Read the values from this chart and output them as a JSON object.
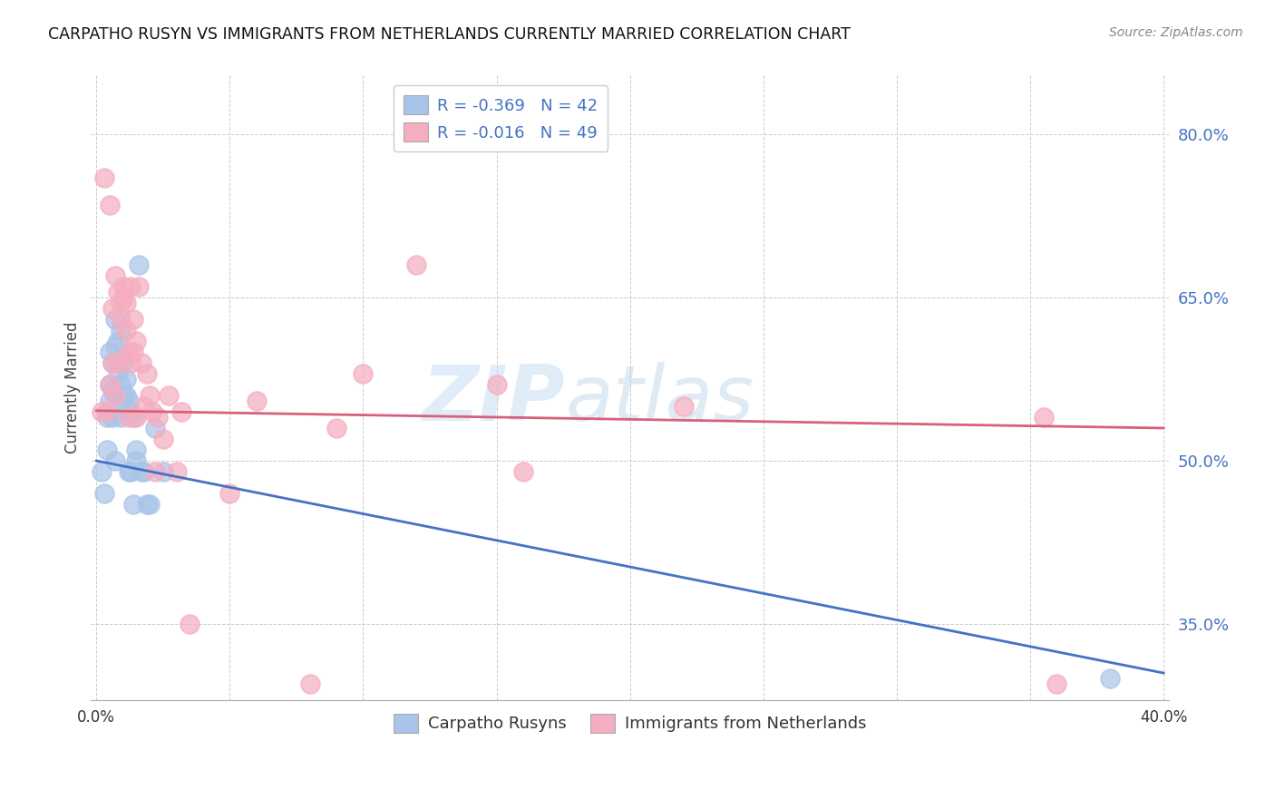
{
  "title": "CARPATHO RUSYN VS IMMIGRANTS FROM NETHERLANDS CURRENTLY MARRIED CORRELATION CHART",
  "source": "Source: ZipAtlas.com",
  "ylabel": "Currently Married",
  "y_ticks": [
    0.35,
    0.5,
    0.65,
    0.8
  ],
  "y_tick_labels": [
    "35.0%",
    "50.0%",
    "65.0%",
    "80.0%"
  ],
  "watermark_zip": "ZIP",
  "watermark_atlas": "atlas",
  "legend_blue_label": "R = -0.369   N = 42",
  "legend_pink_label": "R = -0.016   N = 49",
  "legend_bottom_blue": "Carpatho Rusyns",
  "legend_bottom_pink": "Immigrants from Netherlands",
  "blue_color": "#a8c4e8",
  "pink_color": "#f5adc0",
  "blue_line_color": "#4472c4",
  "pink_line_color": "#d9607a",
  "xlim": [
    -0.002,
    0.402
  ],
  "ylim": [
    0.28,
    0.855
  ],
  "blue_scatter_x": [
    0.002,
    0.003,
    0.004,
    0.004,
    0.005,
    0.005,
    0.005,
    0.006,
    0.006,
    0.006,
    0.007,
    0.007,
    0.007,
    0.007,
    0.008,
    0.008,
    0.008,
    0.008,
    0.009,
    0.009,
    0.009,
    0.01,
    0.01,
    0.01,
    0.011,
    0.011,
    0.012,
    0.012,
    0.013,
    0.013,
    0.014,
    0.014,
    0.015,
    0.015,
    0.016,
    0.017,
    0.018,
    0.019,
    0.02,
    0.022,
    0.025,
    0.38
  ],
  "blue_scatter_y": [
    0.49,
    0.47,
    0.51,
    0.54,
    0.555,
    0.57,
    0.6,
    0.565,
    0.59,
    0.54,
    0.605,
    0.63,
    0.56,
    0.5,
    0.61,
    0.55,
    0.58,
    0.56,
    0.62,
    0.54,
    0.57,
    0.59,
    0.56,
    0.595,
    0.575,
    0.56,
    0.555,
    0.49,
    0.545,
    0.49,
    0.54,
    0.46,
    0.5,
    0.51,
    0.68,
    0.49,
    0.49,
    0.46,
    0.46,
    0.53,
    0.49,
    0.3
  ],
  "pink_scatter_x": [
    0.002,
    0.003,
    0.004,
    0.005,
    0.005,
    0.006,
    0.006,
    0.007,
    0.007,
    0.008,
    0.008,
    0.009,
    0.009,
    0.01,
    0.01,
    0.011,
    0.011,
    0.012,
    0.012,
    0.013,
    0.013,
    0.014,
    0.014,
    0.015,
    0.015,
    0.016,
    0.017,
    0.018,
    0.019,
    0.02,
    0.021,
    0.022,
    0.023,
    0.025,
    0.027,
    0.03,
    0.032,
    0.035,
    0.05,
    0.06,
    0.08,
    0.09,
    0.1,
    0.12,
    0.15,
    0.16,
    0.22,
    0.355,
    0.36
  ],
  "pink_scatter_y": [
    0.545,
    0.76,
    0.545,
    0.57,
    0.735,
    0.59,
    0.64,
    0.56,
    0.67,
    0.59,
    0.655,
    0.63,
    0.645,
    0.65,
    0.66,
    0.62,
    0.645,
    0.6,
    0.54,
    0.66,
    0.59,
    0.63,
    0.6,
    0.61,
    0.54,
    0.66,
    0.59,
    0.55,
    0.58,
    0.56,
    0.545,
    0.49,
    0.54,
    0.52,
    0.56,
    0.49,
    0.545,
    0.35,
    0.47,
    0.555,
    0.295,
    0.53,
    0.58,
    0.68,
    0.57,
    0.49,
    0.55,
    0.54,
    0.295
  ],
  "blue_line_x": [
    0.0,
    0.4
  ],
  "blue_line_y": [
    0.5,
    0.305
  ],
  "pink_line_x": [
    0.0,
    0.4
  ],
  "pink_line_y": [
    0.546,
    0.53
  ],
  "background_color": "#ffffff"
}
